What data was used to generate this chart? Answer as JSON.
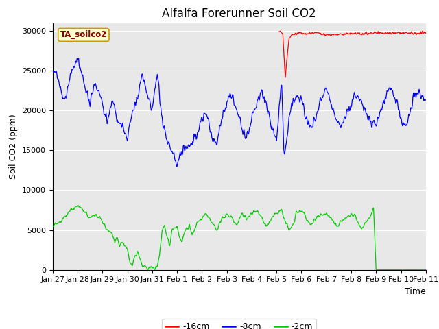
{
  "title": "Alfalfa Forerunner Soil CO2",
  "xlabel": "Time",
  "ylabel": "Soil CO2 (ppm)",
  "ylim": [
    0,
    31000
  ],
  "yticks": [
    0,
    5000,
    10000,
    15000,
    20000,
    25000,
    30000
  ],
  "bg_color": "#e8e8e8",
  "fig_color": "#ffffff",
  "line_colors": {
    "red": "#ff0000",
    "blue": "#0000ff",
    "green": "#00cc00"
  },
  "legend_label": "TA_soilco2",
  "series_labels": [
    "-16cm",
    "-8cm",
    "-2cm"
  ],
  "xtick_labels": [
    "Jan 27",
    "Jan 28",
    "Jan 29",
    "Jan 30",
    "Jan 31",
    "Feb 1",
    "Feb 2",
    "Feb 3",
    "Feb 4",
    "Feb 5",
    "Feb 6",
    "Feb 7",
    "Feb 8",
    "Feb 9",
    "Feb 10",
    "Feb 11"
  ],
  "title_fontsize": 12,
  "axis_label_fontsize": 9,
  "tick_fontsize": 8
}
